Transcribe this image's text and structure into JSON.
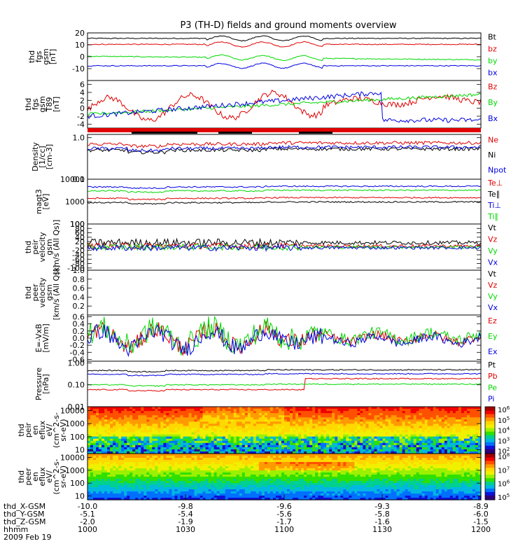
{
  "title": "P3 (TH-D) fields and ground moments overview",
  "colors": {
    "black": "#000000",
    "red": "#e00000",
    "green": "#00d800",
    "blue": "#0000e0"
  },
  "chart_data": [
    {
      "id": "p1",
      "type": "line",
      "ylabel": [
        "thd",
        "fgs",
        "gsm",
        "[nT]"
      ],
      "ylim": [
        -20,
        20
      ],
      "ticks": [
        "-10",
        "0",
        "10",
        "20"
      ],
      "tick_values": [
        -10,
        0,
        10,
        20
      ],
      "series": [
        {
          "name": "Bt",
          "color": "black",
          "level": 15
        },
        {
          "name": "bz",
          "color": "red",
          "level": 10
        },
        {
          "name": "by",
          "color": "green",
          "level": 0
        },
        {
          "name": "bx",
          "color": "blue",
          "level": -8
        }
      ]
    },
    {
      "id": "p2",
      "type": "line",
      "ylabel": [
        "thd",
        "fgs",
        "gsm",
        "T89",
        "[nT]"
      ],
      "ylim": [
        -5,
        7
      ],
      "ticks": [
        "-4",
        "-2",
        "0",
        "2",
        "4",
        "6"
      ],
      "tick_values": [
        -4,
        -2,
        0,
        2,
        4,
        6
      ],
      "series": [
        {
          "name": "Bz",
          "color": "red",
          "level": 2
        },
        {
          "name": "By",
          "color": "green",
          "level": 1
        },
        {
          "name": "Bx",
          "color": "blue",
          "level": 0
        }
      ]
    },
    {
      "id": "p3",
      "type": "line",
      "scale": "log",
      "ylabel": [
        "Density",
        "[1/cc]",
        "[cm-3]"
      ],
      "ylim": [
        0.1,
        1.2
      ],
      "ticks": [
        "1.0",
        "0.1"
      ],
      "tick_values": [
        1,
        0.1
      ],
      "series": [
        {
          "name": "Ne",
          "color": "red",
          "level": 0.7
        },
        {
          "name": "Ni",
          "color": "black",
          "level": 0.5
        },
        {
          "name": "Npot",
          "color": "blue",
          "level": 0.55
        }
      ]
    },
    {
      "id": "p4",
      "type": "line",
      "scale": "log",
      "ylabel": [
        "magt3",
        "[eV]"
      ],
      "ylim": [
        100,
        10000
      ],
      "ticks": [
        "10000",
        "1000",
        "100"
      ],
      "tick_values": [
        10000,
        1000,
        100
      ],
      "series": [
        {
          "name": "Te⊥",
          "color": "red",
          "level": 1400
        },
        {
          "name": "Te∥",
          "color": "black",
          "level": 900
        },
        {
          "name": "Ti⊥",
          "color": "blue",
          "level": 4500
        },
        {
          "name": "Ti∥",
          "color": "green",
          "level": 3000
        }
      ]
    },
    {
      "id": "p5",
      "type": "line",
      "ylabel": [
        "thd",
        "peir",
        "velocity",
        "gsm",
        "[km/s (All Qs)]"
      ],
      "ylim": [
        -110,
        100
      ],
      "ticks": [
        "-100",
        "-80",
        "-60",
        "-40",
        "-20",
        "0",
        "20",
        "40",
        "60",
        "80",
        "100"
      ],
      "tick_values": [
        -100,
        -80,
        -60,
        -40,
        -20,
        0,
        20,
        40,
        60,
        80,
        100
      ],
      "series": [
        {
          "name": "Vt",
          "color": "black",
          "level": 15
        },
        {
          "name": "Vz",
          "color": "red",
          "level": 0
        },
        {
          "name": "Vy",
          "color": "green",
          "level": -5
        },
        {
          "name": "Vx",
          "color": "blue",
          "level": -8
        }
      ]
    },
    {
      "id": "p6",
      "type": "line",
      "ylabel": [
        "thd",
        "peer",
        "velocity",
        "gsm",
        "[km/s (All Qs)]"
      ],
      "ylim": [
        0,
        1
      ],
      "ticks": [
        "0.2",
        "0.4",
        "0.6",
        "0.8",
        "1.0"
      ],
      "tick_values": [
        0.2,
        0.4,
        0.6,
        0.8,
        1.0
      ],
      "series": [
        {
          "name": "Vt",
          "color": "black"
        },
        {
          "name": "Vz",
          "color": "red"
        },
        {
          "name": "Vy",
          "color": "green"
        },
        {
          "name": "Vx",
          "color": "blue"
        }
      ]
    },
    {
      "id": "p7",
      "type": "line",
      "ylabel": [
        "E=-VxB",
        "[mV/m]"
      ],
      "ylim": [
        -0.65,
        0.65
      ],
      "ticks": [
        "-0.6",
        "-0.4",
        "-0.2",
        "0.0",
        "0.2",
        "0.4",
        "0.6"
      ],
      "tick_values": [
        -0.6,
        -0.4,
        -0.2,
        0,
        0.2,
        0.4,
        0.6
      ],
      "series": [
        {
          "name": "Ez",
          "color": "red",
          "level": 0
        },
        {
          "name": "Ey",
          "color": "green",
          "level": 0.05
        },
        {
          "name": "Ex",
          "color": "blue",
          "level": -0.05
        }
      ]
    },
    {
      "id": "p8",
      "type": "line",
      "scale": "log",
      "ylabel": [
        "Pressure",
        "[nPa]"
      ],
      "ylim": [
        0.01,
        1.2
      ],
      "ticks": [
        "1.00",
        "0.10",
        "0.01"
      ],
      "tick_values": [
        1,
        0.1,
        0.01
      ],
      "series": [
        {
          "name": "Pt",
          "color": "black",
          "level": 0.45
        },
        {
          "name": "Pb",
          "color": "red",
          "level": 0.06
        },
        {
          "name": "Pe",
          "color": "green",
          "level": 0.1
        },
        {
          "name": "Pi",
          "color": "blue",
          "level": 0.3
        }
      ]
    },
    {
      "id": "p9",
      "type": "heatmap",
      "scale": "log",
      "ylabel": [
        "thd",
        "peir",
        "en",
        "eflux",
        "eV/",
        "(cm^2-s-",
        "sr-eV)"
      ],
      "ylim": [
        5,
        20000
      ],
      "ticks": [
        "10000",
        "1000",
        "100",
        "10"
      ],
      "tick_values": [
        10000,
        1000,
        100,
        10
      ],
      "colorbar": {
        "ticks": [
          "10^6",
          "10^5",
          "10^4",
          "10^3",
          "10^2"
        ],
        "range": [
          100,
          1000000
        ]
      }
    },
    {
      "id": "p10",
      "type": "heatmap",
      "scale": "log",
      "ylabel": [
        "thd",
        "peer",
        "en",
        "eflux",
        "eV/",
        "(cm^2-s-",
        "sr-eV)"
      ],
      "ylim": [
        5,
        20000
      ],
      "ticks": [
        "10000",
        "1000",
        "100",
        "10"
      ],
      "tick_values": [
        10000,
        1000,
        100,
        10
      ],
      "colorbar": {
        "ticks": [
          "10^8",
          "10^7",
          "10^6",
          "10^5"
        ],
        "range": [
          50000,
          300000000
        ]
      }
    }
  ],
  "x_axis": {
    "rows": [
      {
        "label": "thd_X-GSM",
        "values": [
          "-10.0",
          "-9.8",
          "-9.6",
          "-9.3",
          "-8.9"
        ]
      },
      {
        "label": "thd_Y-GSM",
        "values": [
          "-5.1",
          "-5.4",
          "-5.6",
          "-5.8",
          "-6.0"
        ]
      },
      {
        "label": "thd_Z-GSM",
        "values": [
          "-2.0",
          "-1.9",
          "-1.7",
          "-1.6",
          "-1.5"
        ]
      },
      {
        "label": "hhmm",
        "values": [
          "1000",
          "1030",
          "1100",
          "1130",
          "1200"
        ]
      }
    ],
    "date": "2009 Feb 19"
  }
}
